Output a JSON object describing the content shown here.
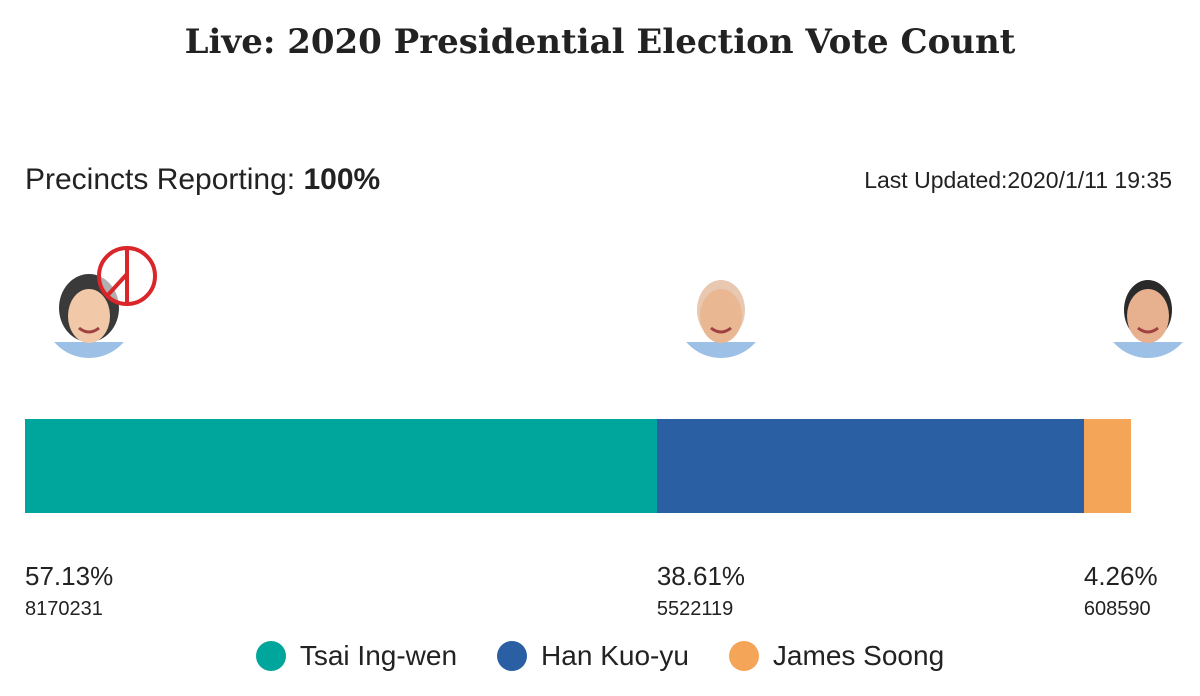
{
  "title": "Live: 2020 Presidential Election Vote Count",
  "precincts": {
    "label": "Precincts Reporting: ",
    "value": "100%"
  },
  "last_updated": "Last Updated:2020/1/11 19:35",
  "chart_data": {
    "type": "bar",
    "orientation": "horizontal-stacked",
    "categories": [
      "Tsai Ing-wen",
      "Han Kuo-yu",
      "James Soong"
    ],
    "percent_labels": [
      "57.13%",
      "38.61%",
      "4.26%"
    ],
    "percents": [
      57.13,
      38.61,
      4.26
    ],
    "values": [
      8170231,
      5522119,
      608590
    ],
    "colors": [
      "#00a69c",
      "#2b5fa3",
      "#f5a557"
    ],
    "winner": "Tsai Ing-wen",
    "legend": "bottom"
  }
}
